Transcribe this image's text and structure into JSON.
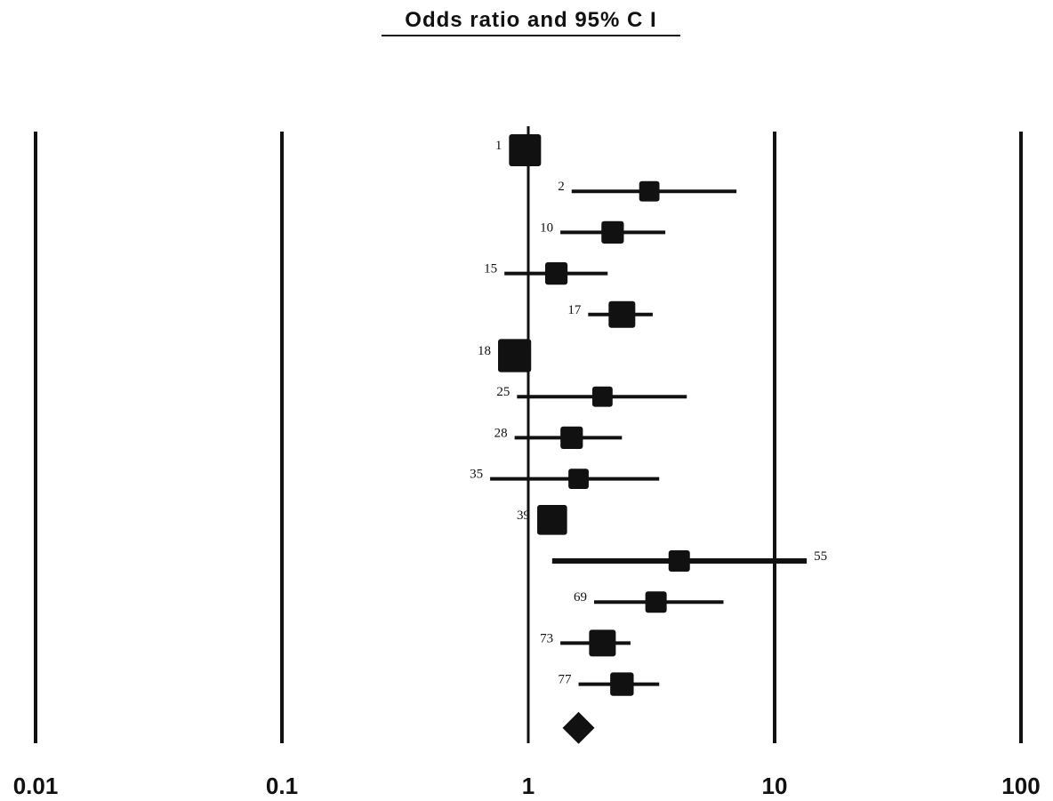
{
  "chart_data": {
    "type": "forest",
    "title": "Odds ratio and 95% C I",
    "x_scale": "log",
    "xlim": [
      0.01,
      100
    ],
    "x_ticks": [
      0.01,
      0.1,
      1,
      10,
      100
    ],
    "x_tick_labels": [
      "0.01",
      "0.1",
      "1",
      "10",
      "100"
    ],
    "reference_line": 1,
    "studies": [
      {
        "label": "1",
        "or": 0.97,
        "ci": [
          0.88,
          1.07
        ],
        "weight": 1.0
      },
      {
        "label": "2",
        "or": 3.1,
        "ci": [
          1.5,
          7.0
        ],
        "weight": 0.45
      },
      {
        "label": "10",
        "or": 2.2,
        "ci": [
          1.35,
          3.6
        ],
        "weight": 0.55
      },
      {
        "label": "15",
        "or": 1.3,
        "ci": [
          0.8,
          2.1
        ],
        "weight": 0.55
      },
      {
        "label": "17",
        "or": 2.4,
        "ci": [
          1.75,
          3.2
        ],
        "weight": 0.75
      },
      {
        "label": "18",
        "or": 0.88,
        "ci": [
          0.8,
          0.96
        ],
        "weight": 1.05
      },
      {
        "label": "25",
        "or": 2.0,
        "ci": [
          0.9,
          4.4
        ],
        "weight": 0.45
      },
      {
        "label": "28",
        "or": 1.5,
        "ci": [
          0.88,
          2.4
        ],
        "weight": 0.55
      },
      {
        "label": "35",
        "or": 1.6,
        "ci": [
          0.7,
          3.4
        ],
        "weight": 0.45
      },
      {
        "label": "39",
        "or": 1.25,
        "ci": [
          1.1,
          1.4
        ],
        "weight": 0.9
      },
      {
        "label": "55",
        "or": 4.1,
        "ci": [
          1.25,
          13.5
        ],
        "weight": 0.5
      },
      {
        "label": "69",
        "or": 3.3,
        "ci": [
          1.85,
          6.2
        ],
        "weight": 0.5
      },
      {
        "label": "73",
        "or": 2.0,
        "ci": [
          1.35,
          2.6
        ],
        "weight": 0.75
      },
      {
        "label": "77",
        "or": 2.4,
        "ci": [
          1.6,
          3.4
        ],
        "weight": 0.6
      }
    ],
    "pooled": {
      "or": 1.6
    }
  }
}
